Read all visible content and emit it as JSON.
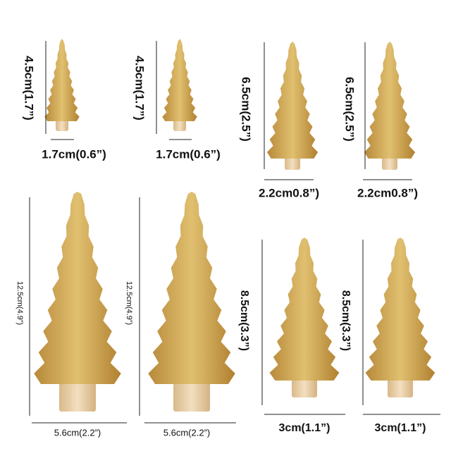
{
  "items": [
    {
      "height": "4.5cm(1.7”)",
      "width": "1.7cm(0.6”)"
    },
    {
      "height": "4.5cm(1.7”)",
      "width": "1.7cm(0.6”)"
    },
    {
      "height": "6.5cm(2.5”)",
      "width": "2.2cm0.8”)"
    },
    {
      "height": "6.5cm(2.5”)",
      "width": "2.2cm0.8”)"
    },
    {
      "height": "12.5cm(4.9”)",
      "width": "5.6cm(2.2”)"
    },
    {
      "height": "12.5cm(4.9”)",
      "width": "5.6cm(2.2”)"
    },
    {
      "height": "8.5cm(3.3”)",
      "width": "3cm(1.1”)"
    },
    {
      "height": "8.5cm(3.3”)",
      "width": "3cm(1.1”)"
    }
  ]
}
